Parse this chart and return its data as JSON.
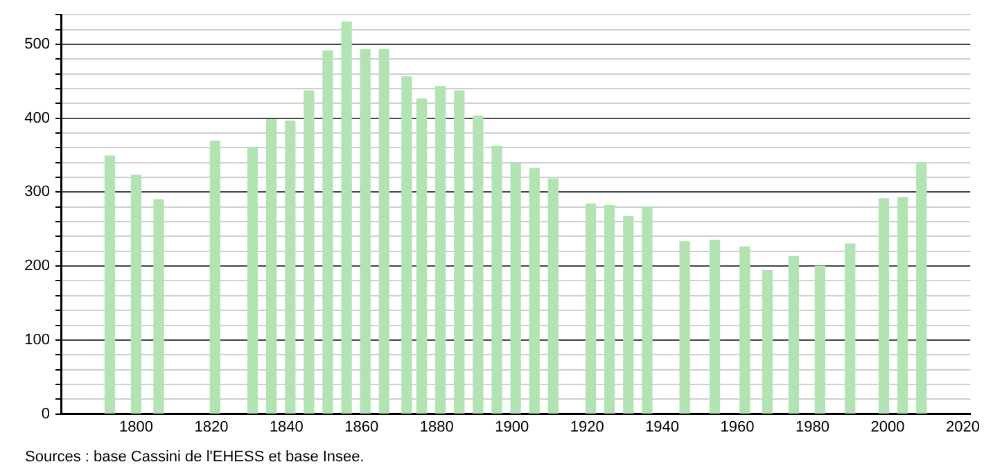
{
  "chart_data": {
    "type": "bar",
    "x": [
      1793,
      1800,
      1806,
      1821,
      1831,
      1836,
      1841,
      1846,
      1851,
      1856,
      1861,
      1866,
      1872,
      1876,
      1881,
      1886,
      1891,
      1896,
      1901,
      1906,
      1911,
      1921,
      1926,
      1931,
      1936,
      1946,
      1954,
      1962,
      1968,
      1975,
      1982,
      1990,
      1999,
      2004,
      2009
    ],
    "values": [
      349,
      323,
      290,
      369,
      360,
      398,
      396,
      437,
      491,
      530,
      493,
      493,
      456,
      426,
      443,
      437,
      403,
      362,
      339,
      332,
      318,
      284,
      282,
      267,
      280,
      233,
      235,
      226,
      194,
      213,
      200,
      230,
      291,
      293,
      339
    ],
    "color": "#b3e3b3",
    "xlim": [
      1780,
      2022
    ],
    "xticks": [
      1800,
      1820,
      1840,
      1860,
      1880,
      1900,
      1920,
      1940,
      1960,
      1980,
      2000,
      2020
    ],
    "ylim": [
      0,
      540
    ],
    "yticks": [
      0,
      {
        "value": 20,
        "label": null
      },
      {
        "value": 40,
        "label": null
      },
      {
        "value": 60,
        "label": null
      },
      {
        "value": 80,
        "label": null
      },
      100,
      {
        "value": 120,
        "label": null
      },
      {
        "value": 140,
        "label": null
      },
      {
        "value": 160,
        "label": null
      },
      {
        "value": 180,
        "label": null
      },
      200,
      {
        "value": 220,
        "label": null
      },
      {
        "value": 240,
        "label": null
      },
      {
        "value": 260,
        "label": null
      },
      {
        "value": 280,
        "label": null
      },
      300,
      {
        "value": 320,
        "label": null
      },
      {
        "value": 340,
        "label": null
      },
      {
        "value": 360,
        "label": null
      },
      {
        "value": 380,
        "label": null
      },
      400,
      {
        "value": 420,
        "label": null
      },
      {
        "value": 440,
        "label": null
      },
      {
        "value": 460,
        "label": null
      },
      {
        "value": 480,
        "label": null
      },
      500,
      {
        "value": 520,
        "label": null
      },
      {
        "value": 540,
        "label": null
      }
    ],
    "grid": "y",
    "annotations": [
      "Sources : base Cassini de l'EHESS et base Insee."
    ]
  }
}
